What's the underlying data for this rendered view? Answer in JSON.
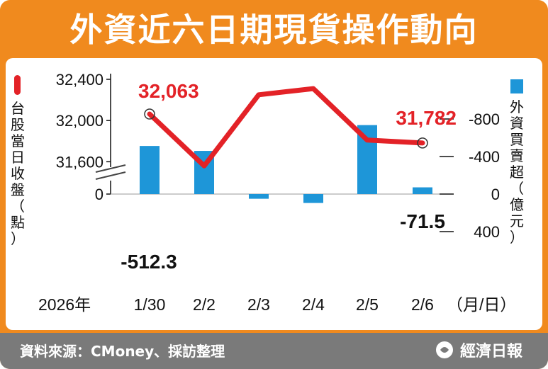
{
  "title": "外資近六日期現貨操作動向",
  "footer": {
    "source": "資料來源：CMoney、採訪整理",
    "brand": "經濟日報"
  },
  "colors": {
    "frame": "#f08a1e",
    "line": "#e32227",
    "bar": "#1e96d8",
    "footer": "#7a7a7a"
  },
  "chart_data": {
    "type": "bar+line",
    "year_label": "2026年",
    "x_unit_label": "（月/日）",
    "categories": [
      "1/30",
      "2/2",
      "2/3",
      "2/4",
      "2/5",
      "2/6"
    ],
    "left_axis": {
      "label": "台股當日收盤（點）",
      "ticks": [
        "32,400",
        "32,000",
        "31,600",
        "0"
      ],
      "range": [
        31600,
        32400
      ],
      "broken": true
    },
    "right_axis": {
      "label": "外資買賣超（億元）",
      "ticks": [
        "400",
        "0",
        "-400",
        "-800"
      ],
      "range": [
        -800,
        400
      ]
    },
    "line_series": {
      "values": [
        32063,
        31560,
        32250,
        32310,
        31810,
        31782
      ],
      "labels": [
        {
          "index": 0,
          "text": "32,063"
        },
        {
          "index": 5,
          "text": "31,782"
        }
      ]
    },
    "bar_series": {
      "values": [
        -512.3,
        -460,
        50,
        95,
        -735,
        -71.5
      ],
      "labels": [
        {
          "index": 0,
          "text": "-512.3"
        },
        {
          "index": 5,
          "text": "-71.5"
        }
      ]
    }
  }
}
